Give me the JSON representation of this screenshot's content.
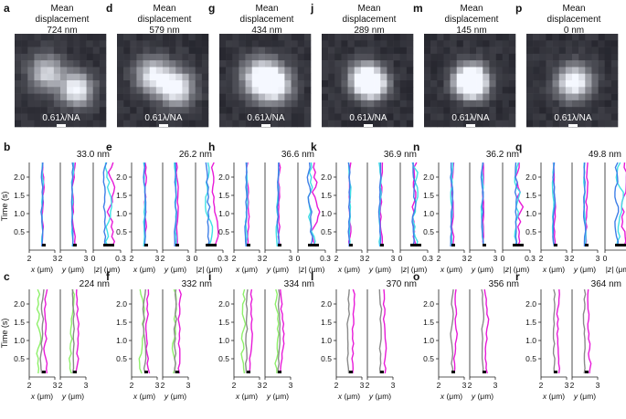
{
  "figure": {
    "panel_letters_top": [
      "a",
      "d",
      "g",
      "j",
      "m",
      "p"
    ],
    "panel_letters_mid": [
      "b",
      "e",
      "h",
      "k",
      "n",
      "q"
    ],
    "panel_letters_bot": [
      "c",
      "f",
      "i",
      "l",
      "o",
      "r"
    ],
    "image_title_line1": "Mean",
    "image_title_line2": "displacement",
    "displacements": [
      "724 nm",
      "579 nm",
      "434 nm",
      "289 nm",
      "145 nm",
      "0 nm"
    ],
    "scale_label": "0.61λ/NA",
    "mid_values": [
      "33.0 nm",
      "26.2 nm",
      "36.6 nm",
      "36.9 nm",
      "36.2 nm",
      "49.8 nm"
    ],
    "bot_values": [
      "224 nm",
      "332 nm",
      "334 nm",
      "370 nm",
      "356 nm",
      "364 nm"
    ],
    "y_axis_label": "Time (s)",
    "y_ticks": [
      "0.5",
      "1.0",
      "1.5",
      "2.0"
    ],
    "xy_ticks": [
      "2",
      "3"
    ],
    "z_ticks": [
      "0",
      "0.3"
    ],
    "x_label": "x (μm)",
    "y_label": "y (μm)",
    "z_label": "|z| (μm)",
    "colors": {
      "magenta": "#e81ad8",
      "blue": "#3f7fe8",
      "cyan": "#3fe0e6",
      "green": "#8ef06a",
      "gray": "#8a8a8a"
    }
  }
}
